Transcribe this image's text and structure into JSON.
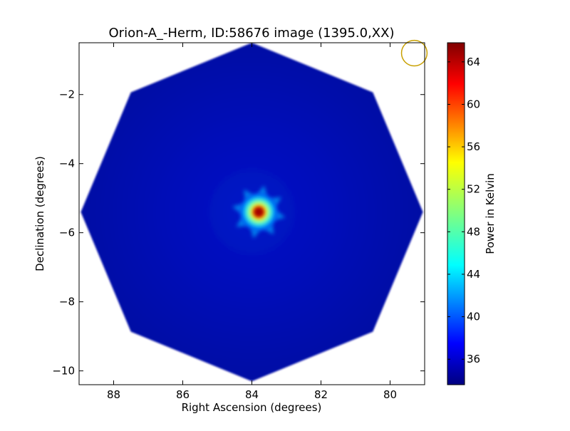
{
  "chart_data": {
    "type": "heatmap",
    "title": "Orion-A_-Herm, ID:58676 image (1395.0,XX)",
    "xlabel": "Right Ascension (degrees)",
    "ylabel": "Declination (degrees)",
    "xlim": [
      89.0,
      79.0
    ],
    "ylim": [
      -10.4,
      -0.5
    ],
    "x_ticks": [
      {
        "value": 88,
        "label": "88"
      },
      {
        "value": 86,
        "label": "86"
      },
      {
        "value": 84,
        "label": "84"
      },
      {
        "value": 82,
        "label": "82"
      },
      {
        "value": 80,
        "label": "80"
      }
    ],
    "y_ticks": [
      {
        "value": -2,
        "label": "−2"
      },
      {
        "value": -4,
        "label": "−4"
      },
      {
        "value": -6,
        "label": "−6"
      },
      {
        "value": -8,
        "label": "−8"
      },
      {
        "value": -10,
        "label": "−10"
      }
    ],
    "footprint": {
      "shape": "octagon",
      "center": [
        84.0,
        -5.4
      ],
      "ra_radius": 4.95,
      "dec_radius": 4.9
    },
    "source": {
      "ra": 83.8,
      "dec": -5.4,
      "peak_value": 65.0,
      "background_value": 36.0
    },
    "beam": {
      "ra": 79.3,
      "dec": -0.8,
      "radius_deg": 0.37,
      "color": "#c8a000"
    },
    "colorbar": {
      "label": "Power in Kelvin",
      "vmin": 33.6,
      "vmax": 65.8,
      "colormap": "jet",
      "ticks": [
        {
          "value": 36,
          "label": "36"
        },
        {
          "value": 40,
          "label": "40"
        },
        {
          "value": 44,
          "label": "44"
        },
        {
          "value": 48,
          "label": "48"
        },
        {
          "value": 52,
          "label": "52"
        },
        {
          "value": 56,
          "label": "56"
        },
        {
          "value": 60,
          "label": "60"
        },
        {
          "value": 64,
          "label": "64"
        }
      ]
    }
  }
}
